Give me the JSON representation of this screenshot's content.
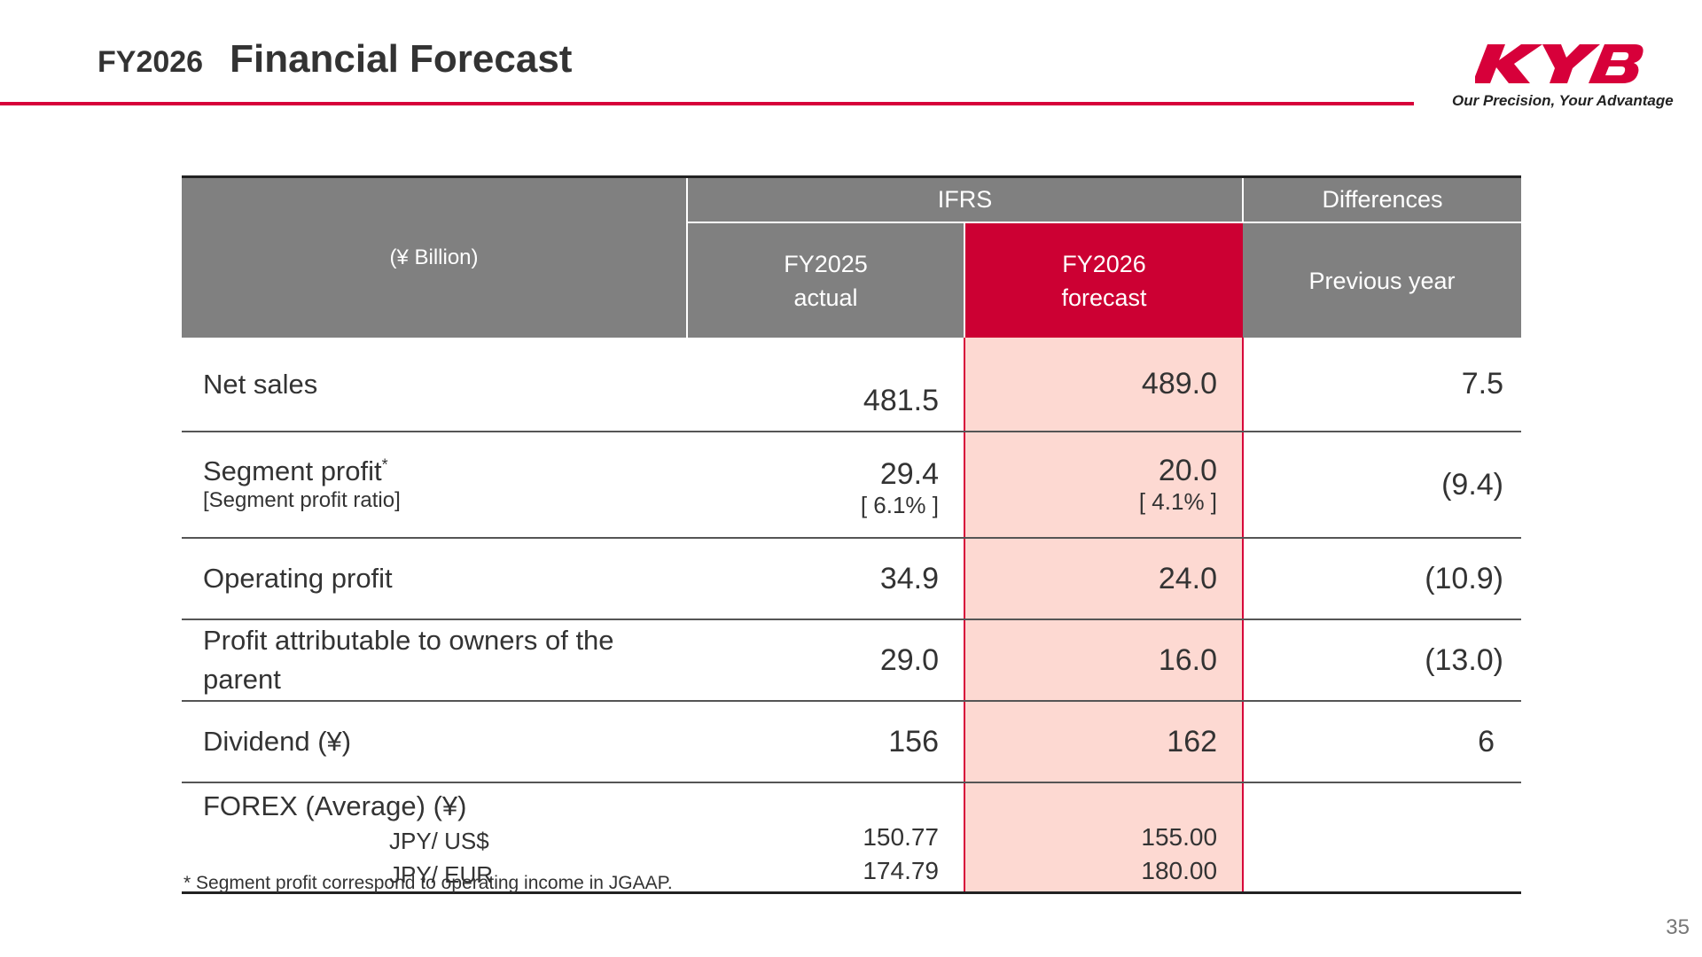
{
  "header": {
    "year": "FY2026",
    "title": "Financial Forecast"
  },
  "logo": {
    "brand": "KYB",
    "tagline": "Our Precision, Your Advantage",
    "color": "#d7003a"
  },
  "table": {
    "unit": "(¥ Billion)",
    "group_ifrs": "IFRS",
    "group_diff": "Differences",
    "col_fy2025": [
      "FY2025",
      "actual"
    ],
    "col_fy2026": [
      "FY2026",
      "forecast"
    ],
    "col_prev": "Previous year",
    "rows": {
      "net_sales": {
        "label": "Net sales",
        "fy2025": "481.5",
        "fy2026": "489.0",
        "diff": "7.5"
      },
      "segment": {
        "label": "Segment profit",
        "mark": "*",
        "sublabel": "[Segment profit ratio]",
        "fy2025": "29.4",
        "fy2025_ratio": "[ 6.1% ]",
        "fy2026": "20.0",
        "fy2026_ratio": "[ 4.1% ]",
        "diff": "(9.4)"
      },
      "operating": {
        "label": "Operating profit",
        "fy2025": "34.9",
        "fy2026": "24.0",
        "diff": "(10.9)"
      },
      "owners": {
        "label": "Profit attributable to owners of the parent",
        "fy2025": "29.0",
        "fy2026": "16.0",
        "diff": "(13.0)"
      },
      "dividend": {
        "label": "Dividend (¥)",
        "fy2025": "156",
        "fy2026": "162",
        "diff": "6"
      },
      "forex": {
        "label": "FOREX (Average) (¥)",
        "usd_label": "JPY/ US$",
        "eur_label": "JPY/ EUR",
        "fy2025_usd": "150.77",
        "fy2025_eur": "174.79",
        "fy2026_usd": "155.00",
        "fy2026_eur": "180.00"
      }
    }
  },
  "footnote": "* Segment profit correspond to operating income in JGAAP.",
  "page_number": "35",
  "colors": {
    "accent_red": "#d7003a",
    "header_gray": "#808080",
    "forecast_header": "#cc0033",
    "forecast_fill": "#fdd9d2"
  }
}
